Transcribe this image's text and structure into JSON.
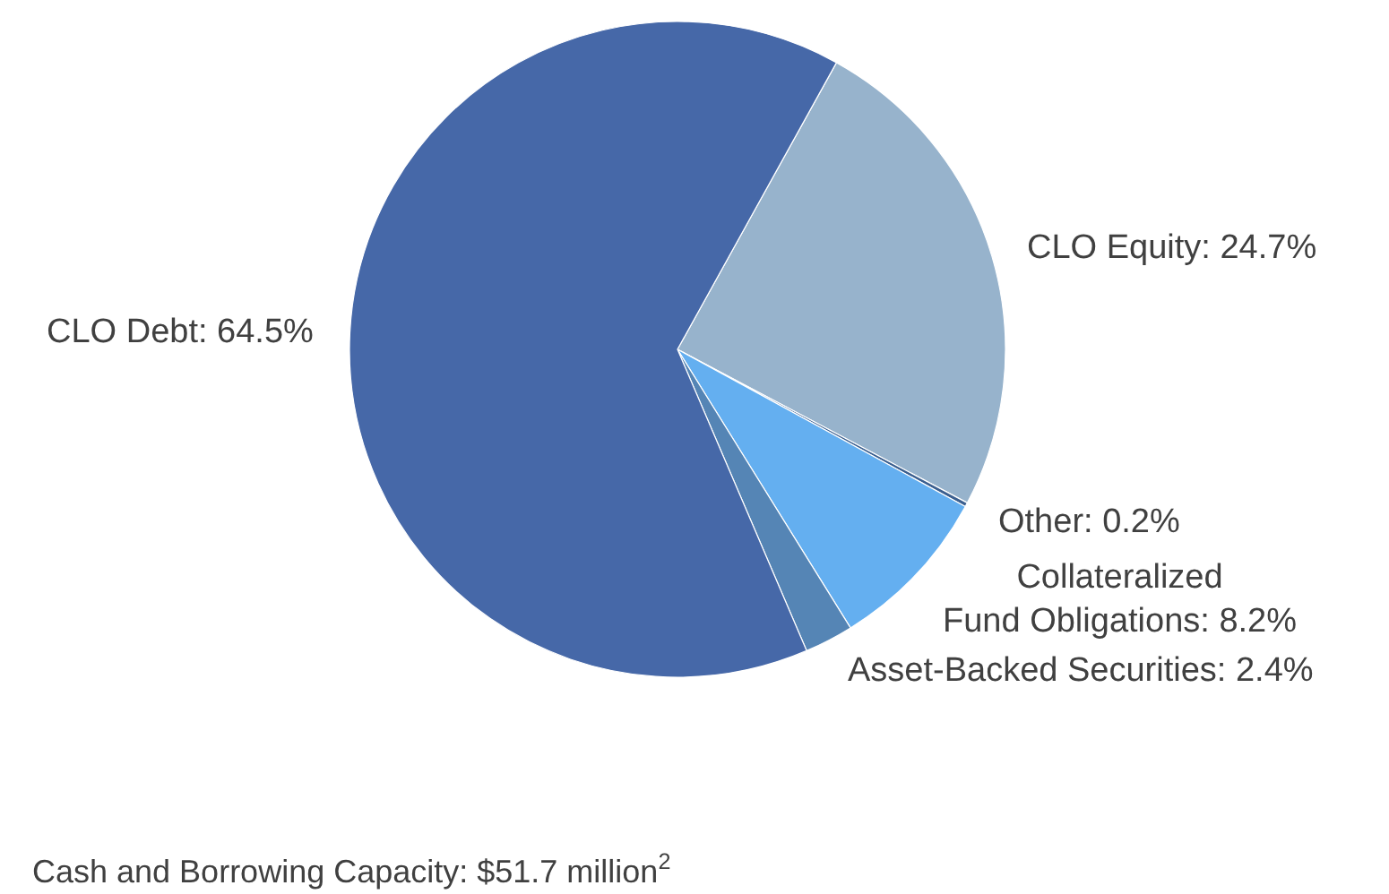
{
  "chart_data": {
    "type": "pie",
    "categories": [
      "CLO Equity",
      "Other",
      "Collateralized Fund Obligations",
      "Asset-Backed Securities",
      "CLO Debt"
    ],
    "values": [
      24.7,
      0.2,
      8.2,
      2.4,
      64.5
    ],
    "value_labels": [
      "24.7%",
      "0.2%",
      "8.2%",
      "2.4%",
      "64.5%"
    ],
    "colors": [
      "#97b3cc",
      "#3b5f8f",
      "#64aff0",
      "#5585b5",
      "#4668a8"
    ],
    "annotations": [
      "Cash and Borrowing Capacity: $51.7 million$^{2}$"
    ]
  }
}
